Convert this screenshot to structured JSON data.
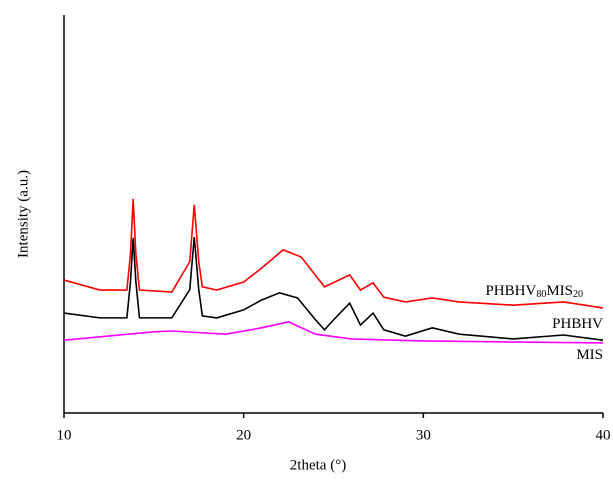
{
  "chart_data": {
    "type": "line",
    "x_label": "2theta (°)",
    "y_label": "Intensity (a.u.)",
    "xlim": [
      10,
      40
    ],
    "xticks": [
      10,
      20,
      30,
      40
    ],
    "ylim": [
      0,
      100
    ],
    "series": [
      {
        "name": "PHBHV80MIS20",
        "color": "#ff0000",
        "x": [
          10,
          12,
          13.5,
          13.7,
          13.85,
          14.0,
          14.2,
          16,
          17.0,
          17.25,
          17.5,
          17.7,
          18.5,
          20,
          21,
          22.2,
          23.2,
          24.5,
          25.9,
          26.5,
          27.2,
          27.8,
          29,
          30.5,
          32,
          35,
          37.8,
          40
        ],
        "values": [
          33.4,
          30.9,
          30.9,
          40,
          53.8,
          40,
          30.9,
          30.4,
          38,
          52.3,
          38,
          31.7,
          30.9,
          32.9,
          36.4,
          41.0,
          39.2,
          31.7,
          34.7,
          30.9,
          32.7,
          29.1,
          27.9,
          28.9,
          27.9,
          27.1,
          27.9,
          26.4
        ]
      },
      {
        "name": "PHBHV",
        "color": "#000000",
        "x": [
          10,
          12,
          13.5,
          13.7,
          13.85,
          14.0,
          14.2,
          16,
          17.0,
          17.25,
          17.5,
          17.7,
          18.5,
          20,
          21,
          22,
          23,
          24,
          24.5,
          25,
          25.9,
          26.5,
          27.2,
          27.8,
          29,
          30.5,
          32,
          35,
          37.8,
          40
        ],
        "values": [
          25.1,
          23.9,
          23.9,
          33,
          44.0,
          33,
          23.9,
          23.9,
          31,
          44.2,
          31,
          24.4,
          23.9,
          25.9,
          28.4,
          30.2,
          28.9,
          23.4,
          20.9,
          23.4,
          27.6,
          22.1,
          25.1,
          20.9,
          19.3,
          21.4,
          19.8,
          18.6,
          19.6,
          18.3
        ]
      },
      {
        "name": "MIS",
        "color": "#ff00ff",
        "x": [
          10,
          15,
          16,
          19,
          21,
          22.5,
          24,
          26,
          30,
          40
        ],
        "values": [
          18.3,
          20.4,
          20.6,
          19.8,
          21.4,
          22.9,
          19.8,
          18.6,
          18.1,
          17.6
        ]
      }
    ]
  }
}
